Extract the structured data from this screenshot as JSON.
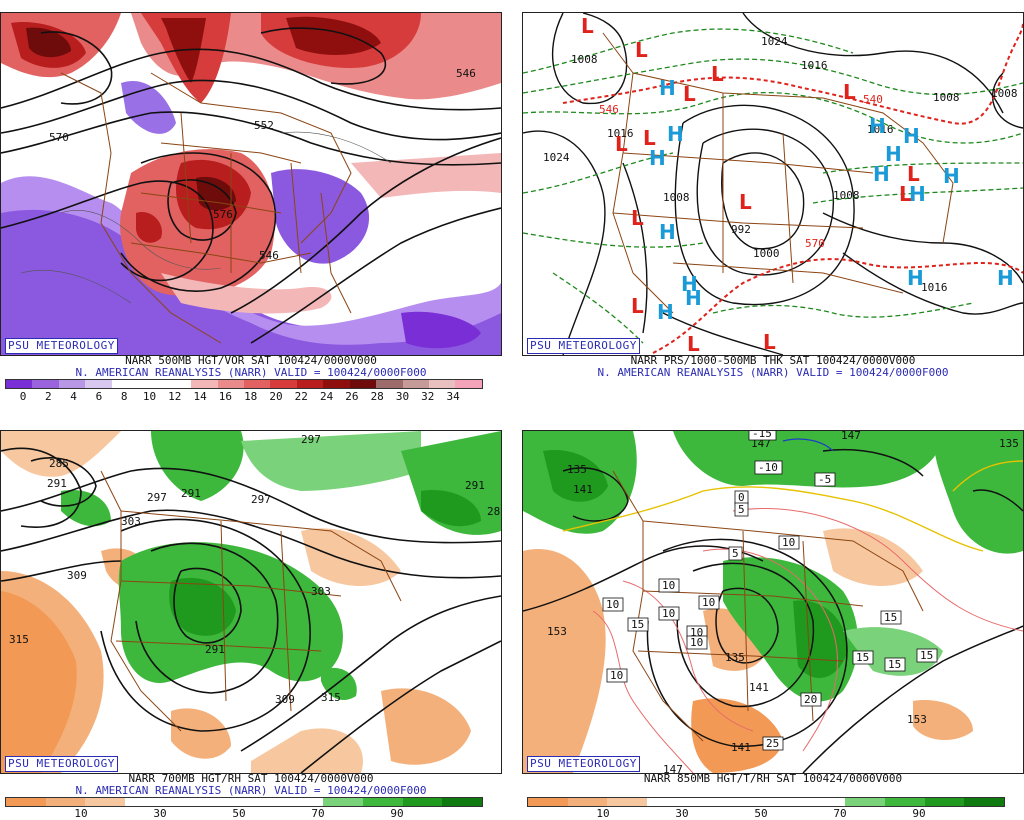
{
  "panels": [
    {
      "id": "p1",
      "badge": "PSU METEOROLOGY",
      "caption_line1": "NARR 500MB HGT/VOR SAT 100424/0000V000",
      "caption_line2": "N. AMERICAN REANALYSIS (NARR) VALID = 100424/0000F000",
      "colorbar_colors": [
        "#7a2fd6",
        "#9a63dd",
        "#b897e6",
        "#d8c8f0",
        "#ffffff",
        "#ffffff",
        "#ffffff",
        "#f3b7b7",
        "#eb8a8a",
        "#e26262",
        "#d63c3c",
        "#b81e1e",
        "#8f0f0f",
        "#6e0b0b",
        "#9e6b6b",
        "#c79a9a",
        "#e8c0c0",
        "#f5a3b9"
      ],
      "colorbar_ticks": [
        "0",
        "2",
        "4",
        "6",
        "8",
        "10",
        "12",
        "14",
        "16",
        "18",
        "20",
        "22",
        "24",
        "26",
        "28",
        "30",
        "32",
        "34"
      ],
      "contour_labels": [
        "570",
        "546",
        "552",
        "576",
        "546",
        "546",
        "570",
        "546",
        "546"
      ]
    },
    {
      "id": "p2",
      "badge": "PSU METEOROLOGY",
      "caption_line1": "NARR PRS/1000-500MB THK SAT 100424/0000V000",
      "caption_line2": "N. AMERICAN REANALYSIS (NARR) VALID = 100424/0000F000",
      "contour_labels": [
        "1008",
        "1024",
        "1016",
        "1024",
        "1016",
        "1008",
        "992",
        "1000",
        "546",
        "540",
        "570",
        "1008",
        "1016",
        "1008",
        "1016",
        "1008"
      ],
      "high_letter": "H",
      "low_letter": "L",
      "colors": {
        "high": "#1a9ad6",
        "low": "#e0221c",
        "thickness": "#e0221c",
        "pressure": "#111111",
        "dashed": "#1e8a1e"
      }
    },
    {
      "id": "p3",
      "badge": "PSU METEOROLOGY",
      "caption_line1": "NARR 700MB HGT/RH SAT 100424/0000V000",
      "caption_line2": "N. AMERICAN REANALYSIS (NARR) VALID = 100424/0000F000",
      "colorbar_colors": [
        "#f29a55",
        "#f4b07a",
        "#f7c8a0",
        "#ffffff",
        "#ffffff",
        "#ffffff",
        "#ffffff",
        "#ffffff",
        "#7ad27a",
        "#3db83d",
        "#1f9a1f",
        "#0f7a0f"
      ],
      "colorbar_ticks": [
        "10",
        "30",
        "50",
        "70",
        "90"
      ],
      "contour_labels": [
        "297",
        "285",
        "291",
        "303",
        "297",
        "291",
        "297",
        "309",
        "291",
        "303",
        "315",
        "309",
        "291",
        "315",
        "28"
      ]
    },
    {
      "id": "p4",
      "badge": "PSU METEOROLOGY",
      "caption_line1": "NARR 850MB HGT/T/RH SAT 100424/0000V000",
      "caption_line2": "",
      "colorbar_colors": [
        "#f29a55",
        "#f4b07a",
        "#f7c8a0",
        "#ffffff",
        "#ffffff",
        "#ffffff",
        "#ffffff",
        "#ffffff",
        "#7ad27a",
        "#3db83d",
        "#1f9a1f",
        "#0f7a0f"
      ],
      "colorbar_ticks": [
        "10",
        "30",
        "50",
        "70",
        "90"
      ],
      "contour_labels": [
        "135",
        "141",
        "147",
        "153",
        "135",
        "141",
        "153",
        "141",
        "147",
        "135",
        "147"
      ],
      "boxed_labels": [
        "-15",
        "-10",
        "-5",
        "0",
        "5",
        "5",
        "10",
        "10",
        "10",
        "10",
        "10",
        "10",
        "10",
        "10",
        "15",
        "15",
        "15",
        "15",
        "15",
        "20",
        "25"
      ]
    }
  ]
}
